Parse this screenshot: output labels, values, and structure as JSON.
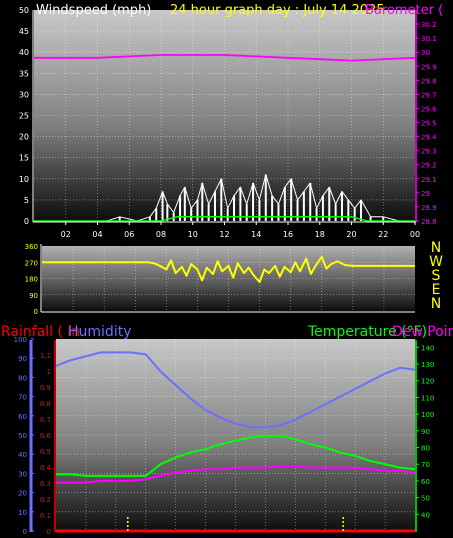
{
  "colors": {
    "wind": "#ffffff",
    "gust": "#00ff00",
    "pressure": "#ff00ff",
    "direction": "#ffff00",
    "rainfall": "#ff0000",
    "humidity": "#6e6eff",
    "temperature": "#00ff00",
    "dewpoint": "#ff00ff",
    "axis_text": "#ffffff",
    "zero_line": "#ff0000",
    "tick_marker": "#ffff00"
  },
  "chart_data": [
    {
      "id": "wind_pressure",
      "type": "line",
      "title_left": "Windspeed (mph)",
      "title_mid": "24 hour graph day : July 14 2025",
      "title_right": "Barometer (",
      "ylim": [
        0,
        50
      ],
      "y_ticks": [
        "0",
        "5",
        "10",
        "15",
        "20",
        "25",
        "30",
        "35",
        "40",
        "45",
        "50"
      ],
      "y2lim": [
        28.8,
        30.3
      ],
      "y2_ticks": [
        "28.8",
        "28.9",
        "29",
        "29.1",
        "29.2",
        "29.3",
        "29.4",
        "29.5",
        "29.6",
        "29.7",
        "29.8",
        "29.9",
        "30",
        "30.1",
        "30.2"
      ],
      "x_ticks": [
        "02",
        "04",
        "06",
        "08",
        "10",
        "12",
        "14",
        "16",
        "18",
        "20",
        "22",
        "00"
      ],
      "xlim": [
        0,
        24
      ],
      "grid": true,
      "series": [
        {
          "key": "wind",
          "x": [
            0,
            1.5,
            3,
            4.6,
            5.4,
            6.5,
            7.3,
            7.7,
            8.1,
            8.4,
            8.8,
            9.2,
            9.5,
            9.9,
            10.3,
            10.6,
            11,
            11.4,
            11.8,
            12.2,
            12.6,
            13,
            13.4,
            13.8,
            14.2,
            14.6,
            15,
            15.4,
            15.8,
            16.2,
            16.6,
            17,
            17.4,
            17.8,
            18.2,
            18.6,
            19,
            19.4,
            19.8,
            20.2,
            20.6,
            21.2,
            22,
            23,
            24
          ],
          "values": [
            0,
            0,
            0,
            0,
            1,
            0,
            1,
            3,
            7,
            4,
            2,
            6,
            8,
            3,
            5,
            9,
            4,
            7,
            10,
            3,
            6,
            8,
            4,
            9,
            5,
            11,
            6,
            4,
            8,
            10,
            5,
            7,
            9,
            3,
            6,
            8,
            4,
            7,
            5,
            3,
            5,
            1,
            1,
            0,
            0
          ]
        },
        {
          "key": "gust",
          "x": [
            0,
            7,
            8,
            9,
            10,
            11,
            12,
            13,
            14,
            15,
            16,
            17,
            18,
            19,
            20,
            21,
            24
          ],
          "values": [
            0,
            0,
            0,
            1,
            1,
            1,
            1,
            1,
            1,
            1,
            1,
            1,
            1,
            1,
            1,
            0,
            0
          ]
        },
        {
          "key": "pressure",
          "x": [
            0,
            2,
            4,
            6,
            8,
            10,
            12,
            14,
            16,
            18,
            20,
            22,
            24
          ],
          "values": [
            29.96,
            29.96,
            29.96,
            29.97,
            29.98,
            29.98,
            29.98,
            29.97,
            29.96,
            29.95,
            29.94,
            29.95,
            29.96
          ]
        }
      ]
    },
    {
      "id": "direction",
      "type": "line",
      "ylim": [
        0,
        360
      ],
      "y_ticks": [
        "0",
        "90",
        "180",
        "270",
        "360"
      ],
      "y_ticks_pos": [
        0,
        90,
        180,
        270,
        360
      ],
      "extra_y_ticks": [
        "30",
        "120",
        "210",
        "300"
      ],
      "compass": [
        "N",
        "W",
        "S",
        "E",
        "N"
      ],
      "xlim": [
        0,
        24
      ],
      "grid": true,
      "series": [
        {
          "key": "direction",
          "x": [
            0,
            2,
            4,
            6,
            6.8,
            7.2,
            7.6,
            8,
            8.3,
            8.6,
            9,
            9.3,
            9.6,
            10,
            10.3,
            10.6,
            11,
            11.3,
            11.6,
            12,
            12.3,
            12.6,
            13,
            13.3,
            13.6,
            14,
            14.3,
            14.6,
            15,
            15.3,
            15.6,
            16,
            16.3,
            16.6,
            17,
            17.3,
            17.6,
            18,
            18.3,
            18.6,
            19,
            19.5,
            20,
            21,
            22,
            23,
            24
          ],
          "values": [
            270,
            270,
            270,
            270,
            270,
            265,
            250,
            230,
            280,
            210,
            245,
            195,
            260,
            230,
            170,
            240,
            205,
            275,
            220,
            250,
            185,
            265,
            210,
            240,
            200,
            160,
            230,
            210,
            250,
            190,
            245,
            215,
            270,
            220,
            290,
            205,
            250,
            300,
            235,
            260,
            275,
            255,
            250,
            250,
            250,
            250,
            250
          ]
        }
      ]
    },
    {
      "id": "temp_humidity_rain",
      "type": "line",
      "title_rain": "Rainfall ( in",
      "title_humidity": "Humidity",
      "title_temp": "Temperature (°F)",
      "title_dew": "Dew Point",
      "ylim": [
        0,
        100
      ],
      "y_ticks": [
        "0",
        "10",
        "20",
        "30",
        "40",
        "50",
        "60",
        "70",
        "80",
        "90",
        "100"
      ],
      "rain_ticks": [
        "0",
        "0.1",
        "0.2",
        "0.3",
        "0.4",
        "0.5",
        "0.6",
        "0.7",
        "0.8",
        "0.9",
        "1",
        "1.1"
      ],
      "rainlim": [
        0,
        1.2
      ],
      "temp_ticks": [
        "40",
        "50",
        "60",
        "70",
        "80",
        "90",
        "100",
        "110",
        "120",
        "130",
        "140"
      ],
      "templim": [
        30,
        145
      ],
      "xlim": [
        0,
        24
      ],
      "grid": true,
      "series": [
        {
          "key": "humidity",
          "x": [
            0,
            1,
            2,
            3,
            4,
            5,
            6,
            7,
            8,
            9,
            10,
            11,
            12,
            13,
            14,
            15,
            16,
            17,
            18,
            19,
            20,
            21,
            22,
            23,
            24
          ],
          "values": [
            86,
            89,
            91,
            93,
            93,
            93,
            92,
            83,
            76,
            69,
            63,
            59,
            56,
            54,
            54,
            55,
            58,
            62,
            66,
            70,
            74,
            78,
            82,
            85,
            84
          ]
        },
        {
          "key": "temperature",
          "x": [
            0,
            1,
            2,
            3,
            4,
            5,
            6,
            7,
            8,
            9,
            10,
            11,
            12,
            13,
            14,
            15,
            16,
            17,
            18,
            19,
            20,
            21,
            22,
            23,
            24
          ],
          "values": [
            64,
            64,
            63,
            63,
            63,
            63,
            63,
            70,
            74,
            77,
            79,
            82,
            84,
            86,
            87,
            87,
            85,
            82,
            80,
            77,
            75,
            72,
            70,
            68,
            67
          ]
        },
        {
          "key": "dewpoint",
          "x": [
            0,
            1,
            2,
            3,
            4,
            5,
            6,
            7,
            8,
            9,
            10,
            11,
            12,
            13,
            14,
            15,
            16,
            17,
            18,
            19,
            20,
            21,
            22,
            23,
            24
          ],
          "values": [
            59,
            59,
            59,
            60,
            60,
            60,
            61,
            63,
            65,
            66,
            67,
            67,
            68,
            68,
            68,
            69,
            69,
            68,
            68,
            68,
            68,
            67,
            66,
            66,
            65
          ]
        },
        {
          "key": "rainfall",
          "x": [
            0,
            24
          ],
          "values": [
            0,
            0
          ]
        }
      ],
      "markers_x": [
        4.8,
        19.2
      ]
    }
  ]
}
